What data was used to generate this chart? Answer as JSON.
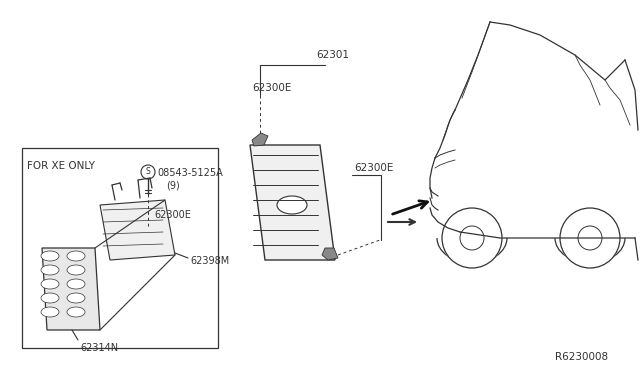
{
  "bg_color": "#ffffff",
  "line_color": "#333333",
  "text_color": "#333333",
  "ref_code": "R6230008",
  "box_label": "FOR XE ONLY",
  "label_08543": "08543-5125A",
  "label_9": "(9)",
  "parts": [
    "62301",
    "62300E",
    "62300E",
    "62398M",
    "62314N",
    "62300E"
  ]
}
